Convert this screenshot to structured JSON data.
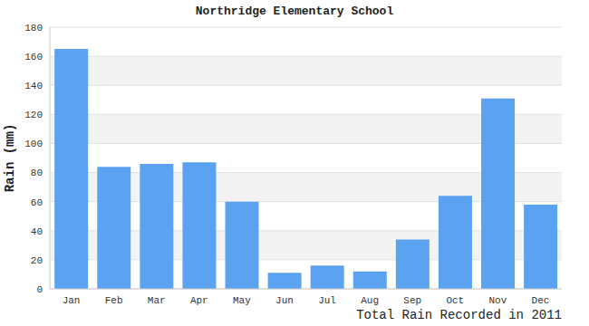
{
  "chart_data": {
    "type": "bar",
    "title": "Northridge Elementary School",
    "y_label": "Rain (mm)",
    "x_label": "Total Rain Recorded in 2011",
    "categories": [
      "Jan",
      "Feb",
      "Mar",
      "Apr",
      "May",
      "Jun",
      "Jul",
      "Aug",
      "Sep",
      "Oct",
      "Nov",
      "Dec"
    ],
    "values": [
      165,
      84,
      86,
      87,
      60,
      11,
      16,
      12,
      34,
      64,
      131,
      58
    ],
    "color": "#5ba3f0",
    "ylim": [
      0,
      180
    ],
    "yticks": [
      0,
      20,
      40,
      60,
      80,
      100,
      120,
      140,
      160,
      180
    ],
    "grid": true
  }
}
